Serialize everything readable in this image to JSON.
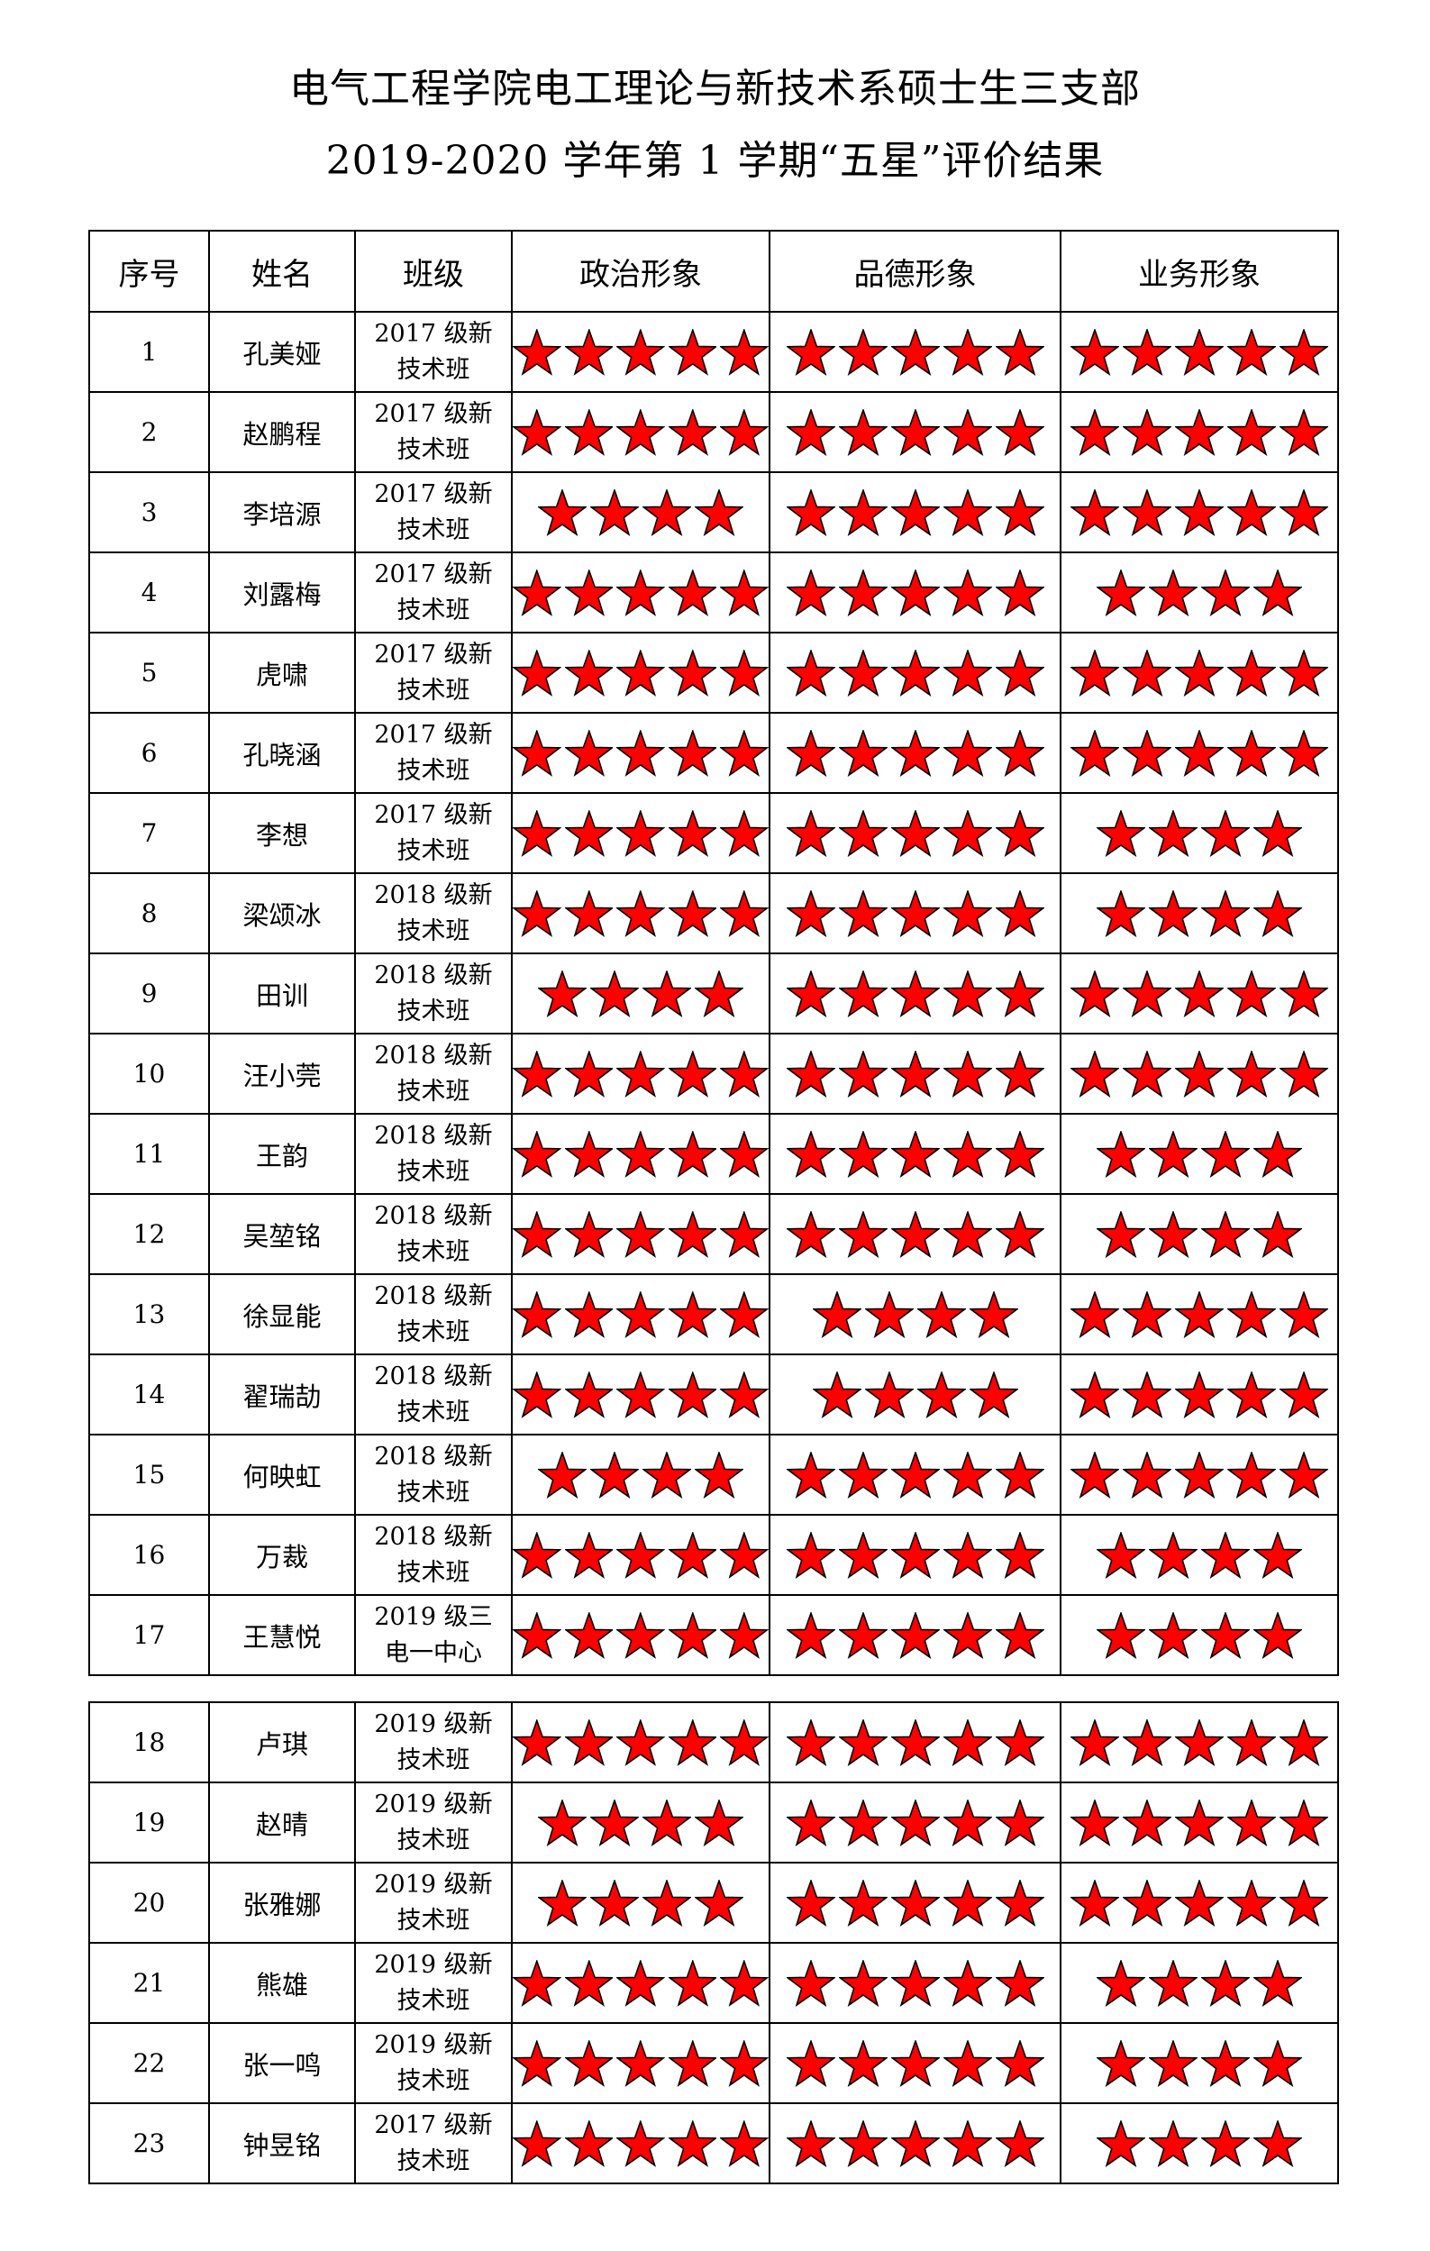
{
  "title_line1": "电气工程学院电工理论与新技术系硕士生三支部",
  "title_line2": "2019-2020 学年第 1 学期“五星”评价结果",
  "headers": [
    "序号",
    "姓名",
    "班级",
    "政治形象",
    "品德形象",
    "业务形象"
  ],
  "star_color": "#ff0000",
  "table1": [
    {
      "no": "1",
      "name": "孔美娅",
      "class": "2017 级新技术班",
      "ratings": [
        5,
        5,
        5
      ]
    },
    {
      "no": "2",
      "name": "赵鹏程",
      "class": "2017 级新技术班",
      "ratings": [
        5,
        5,
        5
      ]
    },
    {
      "no": "3",
      "name": "李培源",
      "class": "2017 级新技术班",
      "ratings": [
        4,
        5,
        5
      ]
    },
    {
      "no": "4",
      "name": "刘露梅",
      "class": "2017 级新技术班",
      "ratings": [
        5,
        5,
        4
      ]
    },
    {
      "no": "5",
      "name": "虎啸",
      "class": "2017 级新技术班",
      "ratings": [
        5,
        5,
        5
      ]
    },
    {
      "no": "6",
      "name": "孔晓涵",
      "class": "2017 级新技术班",
      "ratings": [
        5,
        5,
        5
      ]
    },
    {
      "no": "7",
      "name": "李想",
      "class": "2017 级新技术班",
      "ratings": [
        5,
        5,
        4
      ]
    },
    {
      "no": "8",
      "name": "梁颂冰",
      "class": "2018 级新技术班",
      "ratings": [
        5,
        5,
        4
      ]
    },
    {
      "no": "9",
      "name": "田训",
      "class": "2018 级新技术班",
      "ratings": [
        4,
        5,
        5
      ]
    },
    {
      "no": "10",
      "name": "汪小莞",
      "class": "2018 级新技术班",
      "ratings": [
        5,
        5,
        5
      ]
    },
    {
      "no": "11",
      "name": "王韵",
      "class": "2018 级新技术班",
      "ratings": [
        5,
        5,
        4
      ]
    },
    {
      "no": "12",
      "name": "吴堃铭",
      "class": "2018 级新技术班",
      "ratings": [
        5,
        5,
        4
      ]
    },
    {
      "no": "13",
      "name": "徐显能",
      "class": "2018 级新技术班",
      "ratings": [
        5,
        4,
        5
      ]
    },
    {
      "no": "14",
      "name": "翟瑞劼",
      "class": "2018 级新技术班",
      "ratings": [
        5,
        4,
        5
      ]
    },
    {
      "no": "15",
      "name": "何映虹",
      "class": "2018 级新技术班",
      "ratings": [
        4,
        5,
        5
      ]
    },
    {
      "no": "16",
      "name": "万裁",
      "class": "2018 级新技术班",
      "ratings": [
        5,
        5,
        4
      ]
    },
    {
      "no": "17",
      "name": "王慧悦",
      "class": "2019 级三电一中心",
      "ratings": [
        5,
        5,
        4
      ]
    }
  ],
  "table2": [
    {
      "no": "18",
      "name": "卢琪",
      "class": "2019 级新技术班",
      "ratings": [
        5,
        5,
        5
      ]
    },
    {
      "no": "19",
      "name": "赵晴",
      "class": "2019 级新技术班",
      "ratings": [
        4,
        5,
        5
      ]
    },
    {
      "no": "20",
      "name": "张雅娜",
      "class": "2019 级新技术班",
      "ratings": [
        4,
        5,
        5
      ]
    },
    {
      "no": "21",
      "name": "熊雄",
      "class": "2019 级新技术班",
      "ratings": [
        5,
        5,
        4
      ]
    },
    {
      "no": "22",
      "name": "张一鸣",
      "class": "2019 级新技术班",
      "ratings": [
        5,
        5,
        4
      ]
    },
    {
      "no": "23",
      "name": "钟昱铭",
      "class": "2017 级新技术班",
      "ratings": [
        5,
        5,
        4
      ]
    }
  ]
}
